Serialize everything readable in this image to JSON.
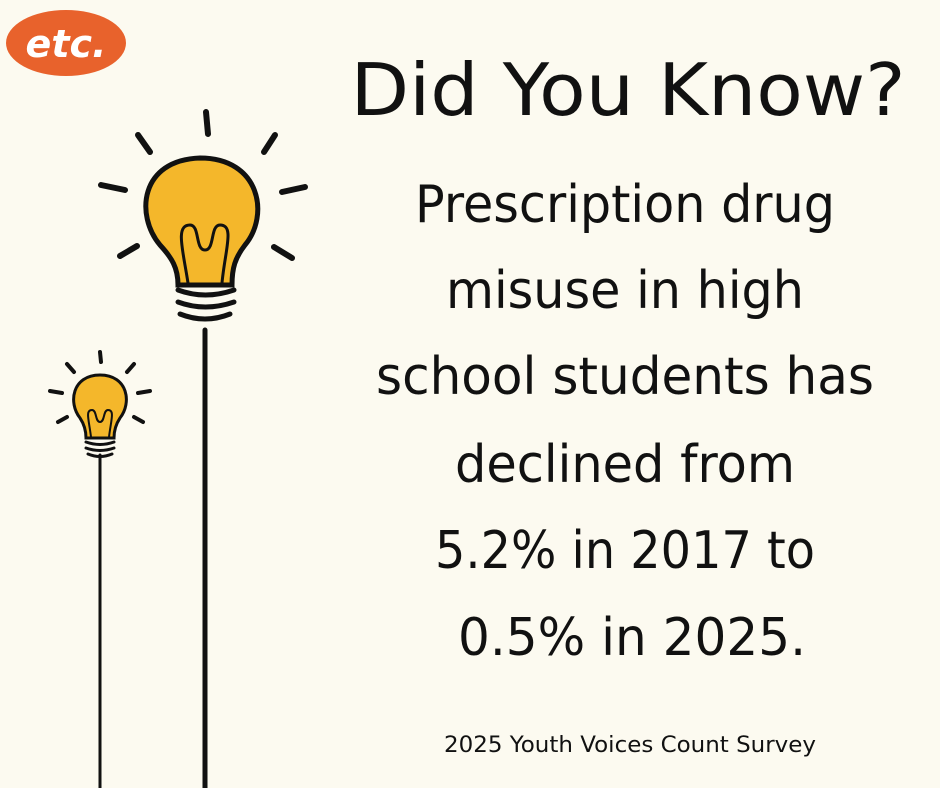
{
  "logo": "etc.",
  "title": "Did You Know?",
  "body": [
    "Prescription drug",
    "misuse in high",
    "school students has",
    "declined from",
    "5.2% in 2017 to",
    "0.5% in 2025."
  ],
  "source": "2025 Youth Voices Count Survey"
}
